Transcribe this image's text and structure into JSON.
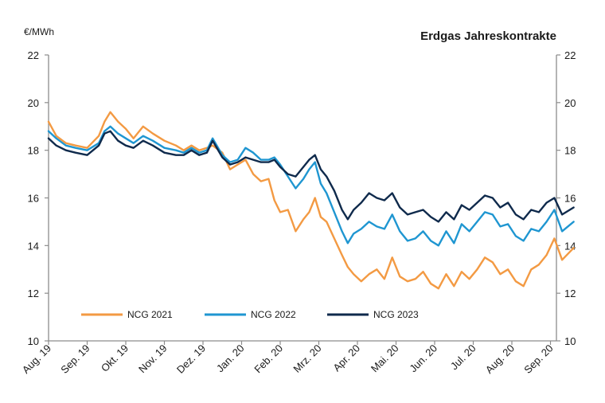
{
  "chart_data": {
    "type": "line",
    "title": "Erdgas Jahreskontrakte",
    "ylabel": "€/MWh",
    "ylim": [
      10,
      22
    ],
    "yticks": [
      10,
      12,
      14,
      16,
      18,
      20,
      22
    ],
    "months": [
      "Aug. 19",
      "Sep. 19",
      "Okt. 19",
      "Nov. 19",
      "Dez. 19",
      "Jan. 20",
      "Feb. 20",
      "Mrz. 20",
      "Apr. 20",
      "Mai. 20",
      "Jun. 20",
      "Jul. 20",
      "Aug. 20",
      "Sep. 20"
    ],
    "x_end": 13.6,
    "series": [
      {
        "name": "NCG 2021",
        "color": "#f39a43",
        "x": [
          0,
          0.2,
          0.45,
          0.7,
          1.0,
          1.3,
          1.45,
          1.6,
          1.8,
          2.0,
          2.2,
          2.45,
          2.7,
          3.0,
          3.3,
          3.5,
          3.7,
          3.9,
          4.1,
          4.25,
          4.5,
          4.7,
          4.9,
          5.1,
          5.3,
          5.5,
          5.7,
          5.85,
          6.0,
          6.2,
          6.4,
          6.6,
          6.75,
          6.9,
          7.05,
          7.2,
          7.4,
          7.6,
          7.75,
          7.9,
          8.1,
          8.3,
          8.5,
          8.7,
          8.9,
          9.1,
          9.3,
          9.5,
          9.7,
          9.9,
          10.1,
          10.3,
          10.5,
          10.7,
          10.9,
          11.1,
          11.3,
          11.5,
          11.7,
          11.9,
          12.1,
          12.3,
          12.5,
          12.7,
          12.9,
          13.1,
          13.3,
          13.6
        ],
        "values": [
          19.2,
          18.6,
          18.3,
          18.2,
          18.1,
          18.6,
          19.2,
          19.6,
          19.2,
          18.9,
          18.5,
          19.0,
          18.7,
          18.4,
          18.2,
          18.0,
          18.2,
          18.0,
          18.1,
          18.2,
          17.9,
          17.2,
          17.4,
          17.6,
          17.0,
          16.7,
          16.8,
          15.9,
          15.4,
          15.5,
          14.6,
          15.1,
          15.4,
          16.0,
          15.2,
          15.0,
          14.3,
          13.6,
          13.1,
          12.8,
          12.5,
          12.8,
          13.0,
          12.6,
          13.5,
          12.7,
          12.5,
          12.6,
          12.9,
          12.4,
          12.2,
          12.8,
          12.3,
          12.9,
          12.6,
          13.0,
          13.5,
          13.3,
          12.8,
          13.0,
          12.5,
          12.3,
          13.0,
          13.2,
          13.6,
          14.3,
          13.4,
          13.9
        ]
      },
      {
        "name": "NCG 2022",
        "color": "#1f96d1",
        "x": [
          0,
          0.2,
          0.45,
          0.7,
          1.0,
          1.3,
          1.45,
          1.6,
          1.8,
          2.0,
          2.2,
          2.45,
          2.7,
          3.0,
          3.3,
          3.5,
          3.7,
          3.9,
          4.1,
          4.25,
          4.5,
          4.7,
          4.9,
          5.1,
          5.3,
          5.5,
          5.7,
          5.85,
          6.0,
          6.2,
          6.4,
          6.6,
          6.75,
          6.9,
          7.05,
          7.2,
          7.4,
          7.6,
          7.75,
          7.9,
          8.1,
          8.3,
          8.5,
          8.7,
          8.9,
          9.1,
          9.3,
          9.5,
          9.7,
          9.9,
          10.1,
          10.3,
          10.5,
          10.7,
          10.9,
          11.1,
          11.3,
          11.5,
          11.7,
          11.9,
          12.1,
          12.3,
          12.5,
          12.7,
          12.9,
          13.1,
          13.3,
          13.6
        ],
        "values": [
          18.8,
          18.5,
          18.2,
          18.1,
          18.0,
          18.3,
          18.8,
          19.0,
          18.7,
          18.5,
          18.3,
          18.6,
          18.4,
          18.1,
          18.0,
          17.9,
          18.1,
          17.9,
          18.0,
          18.5,
          17.8,
          17.5,
          17.6,
          18.1,
          17.9,
          17.6,
          17.6,
          17.7,
          17.4,
          16.9,
          16.4,
          16.8,
          17.2,
          17.5,
          16.6,
          16.2,
          15.4,
          14.6,
          14.1,
          14.5,
          14.7,
          15.0,
          14.8,
          14.7,
          15.3,
          14.6,
          14.2,
          14.3,
          14.6,
          14.2,
          14.0,
          14.6,
          14.1,
          14.9,
          14.6,
          15.0,
          15.4,
          15.3,
          14.8,
          14.9,
          14.4,
          14.2,
          14.7,
          14.6,
          15.0,
          15.5,
          14.6,
          15.0
        ]
      },
      {
        "name": "NCG 2023",
        "color": "#0f2a4c",
        "x": [
          0,
          0.2,
          0.45,
          0.7,
          1.0,
          1.3,
          1.45,
          1.6,
          1.8,
          2.0,
          2.2,
          2.45,
          2.7,
          3.0,
          3.3,
          3.5,
          3.7,
          3.9,
          4.1,
          4.25,
          4.5,
          4.7,
          4.9,
          5.1,
          5.3,
          5.5,
          5.7,
          5.85,
          6.0,
          6.2,
          6.4,
          6.6,
          6.75,
          6.9,
          7.05,
          7.2,
          7.4,
          7.6,
          7.75,
          7.9,
          8.1,
          8.3,
          8.5,
          8.7,
          8.9,
          9.1,
          9.3,
          9.5,
          9.7,
          9.9,
          10.1,
          10.3,
          10.5,
          10.7,
          10.9,
          11.1,
          11.3,
          11.5,
          11.7,
          11.9,
          12.1,
          12.3,
          12.5,
          12.7,
          12.9,
          13.1,
          13.3,
          13.6
        ],
        "values": [
          18.5,
          18.2,
          18.0,
          17.9,
          17.8,
          18.2,
          18.7,
          18.8,
          18.4,
          18.2,
          18.1,
          18.4,
          18.2,
          17.9,
          17.8,
          17.8,
          18.0,
          17.8,
          17.9,
          18.4,
          17.7,
          17.4,
          17.5,
          17.7,
          17.6,
          17.5,
          17.5,
          17.6,
          17.3,
          17.0,
          16.9,
          17.3,
          17.6,
          17.8,
          17.2,
          16.9,
          16.3,
          15.5,
          15.1,
          15.5,
          15.8,
          16.2,
          16.0,
          15.9,
          16.2,
          15.6,
          15.3,
          15.4,
          15.5,
          15.2,
          15.0,
          15.4,
          15.1,
          15.7,
          15.5,
          15.8,
          16.1,
          16.0,
          15.6,
          15.8,
          15.3,
          15.1,
          15.5,
          15.4,
          15.8,
          16.0,
          15.3,
          15.6
        ]
      }
    ]
  }
}
